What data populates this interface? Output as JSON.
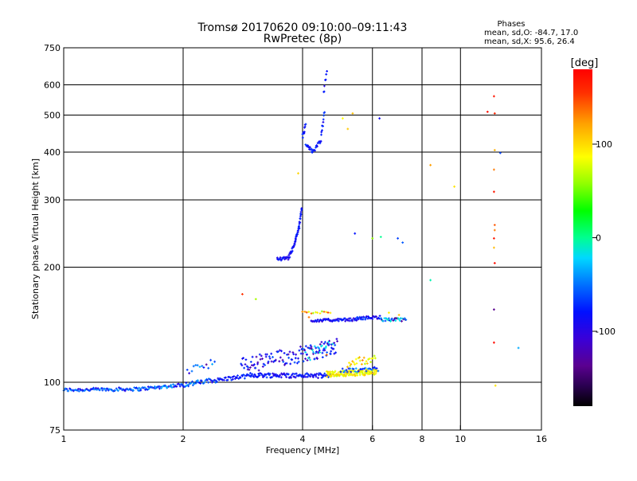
{
  "chart_data": {
    "type": "scatter",
    "title": "Tromsø 20170620 09:10:00–09:11:43",
    "subtitle": "RwPretec (8p)",
    "xlabel": "Frequency [MHz]",
    "ylabel": "Stationary phase Virtual Height [km]",
    "x_scale": "log",
    "y_scale": "log",
    "xlim": [
      1,
      16
    ],
    "ylim": [
      75,
      750
    ],
    "x_ticks": [
      1,
      2,
      4,
      6,
      8,
      10,
      16
    ],
    "y_ticks": [
      75,
      100,
      200,
      300,
      400,
      500,
      600,
      750
    ],
    "x_gridlines": [
      2,
      4,
      6,
      8,
      10
    ],
    "y_gridlines": [
      100,
      200,
      300,
      400,
      500,
      600
    ],
    "stats": {
      "header": "Phases",
      "line1": "mean, sd,O: -84.7, 17.0",
      "line2": "mean, sd,X:  95.6, 26.4"
    },
    "colorbar": {
      "label": "[deg]",
      "range": [
        -180,
        180
      ],
      "ticks": [
        {
          "value": 100,
          "label": "100"
        },
        {
          "value": 0,
          "label": "0"
        },
        {
          "value": -100,
          "label": "-100"
        }
      ]
    },
    "series": [
      {
        "name": "lower-trace",
        "segments": [
          {
            "x0": 1.0,
            "x1": 1.55,
            "y0": 95.5,
            "y1": 96.0,
            "n": 80,
            "phase": -100,
            "jitter": 1.0,
            "pspread": 25
          },
          {
            "x0": 1.55,
            "x1": 2.0,
            "y0": 96.0,
            "y1": 98.5,
            "n": 50,
            "phase": -95,
            "jitter": 1.0,
            "pspread": 30
          },
          {
            "x0": 2.0,
            "x1": 2.45,
            "y0": 98.5,
            "y1": 101.5,
            "n": 40,
            "phase": -95,
            "jitter": 1.5,
            "pspread": 25
          },
          {
            "x0": 2.45,
            "x1": 2.95,
            "y0": 101.5,
            "y1": 104.0,
            "n": 35,
            "phase": -110,
            "jitter": 1.2,
            "pspread": 10
          },
          {
            "x0": 2.95,
            "x1": 4.7,
            "y0": 104.5,
            "y1": 104.0,
            "n": 110,
            "phase": -112,
            "jitter": 1.5,
            "pspread": 10
          }
        ]
      },
      {
        "name": "scattered-mid",
        "segments": [
          {
            "x0": 2.05,
            "x1": 2.4,
            "y0": 108.0,
            "y1": 113.0,
            "n": 14,
            "phase": -100,
            "jitter": 3.0,
            "pspread": 40
          },
          {
            "x0": 2.8,
            "x1": 4.9,
            "y0": 110.0,
            "y1": 124.0,
            "n": 120,
            "phase": -115,
            "jitter": 6.0,
            "pspread": 20
          },
          {
            "x0": 4.0,
            "x1": 4.8,
            "y0": 118.0,
            "y1": 124.0,
            "n": 30,
            "phase": -80,
            "jitter": 5.0,
            "pspread": 60
          }
        ]
      },
      {
        "name": "yellow-cluster",
        "segments": [
          {
            "x0": 4.6,
            "x1": 6.15,
            "y0": 105.0,
            "y1": 106.5,
            "n": 130,
            "phase": 95,
            "jitter": 1.8,
            "pspread": 25
          },
          {
            "x0": 5.2,
            "x1": 6.1,
            "y0": 112.0,
            "y1": 116.0,
            "n": 25,
            "phase": 100,
            "jitter": 3.0,
            "pspread": 40
          }
        ]
      },
      {
        "name": "blue-right",
        "segments": [
          {
            "x0": 5.0,
            "x1": 6.2,
            "y0": 107.0,
            "y1": 108.5,
            "n": 30,
            "phase": -95,
            "jitter": 1.5,
            "pspread": 25
          }
        ]
      },
      {
        "name": "upper-band",
        "segments": [
          {
            "x0": 4.2,
            "x1": 5.5,
            "y0": 145.0,
            "y1": 146.0,
            "n": 60,
            "phase": -115,
            "jitter": 1.2,
            "pspread": 12
          },
          {
            "x0": 5.5,
            "x1": 6.3,
            "y0": 147.0,
            "y1": 148.0,
            "n": 35,
            "phase": -112,
            "jitter": 1.3,
            "pspread": 15
          },
          {
            "x0": 6.3,
            "x1": 7.3,
            "y0": 146.0,
            "y1": 145.5,
            "n": 30,
            "phase": -90,
            "jitter": 1.5,
            "pspread": 60
          },
          {
            "x0": 4.0,
            "x1": 4.7,
            "y0": 152.0,
            "y1": 153.0,
            "n": 14,
            "phase": 100,
            "jitter": 1.5,
            "pspread": 60
          }
        ]
      },
      {
        "name": "F-trace",
        "segments": [
          {
            "x0": 3.45,
            "x1": 3.7,
            "y0": 210.0,
            "y1": 211.0,
            "n": 22,
            "phase": -115,
            "jitter": 2.0,
            "pspread": 10
          },
          {
            "x0": 3.7,
            "x1": 3.82,
            "y0": 213.0,
            "y1": 230.0,
            "n": 18,
            "phase": -112,
            "jitter": 2.5,
            "pspread": 10
          },
          {
            "x0": 3.82,
            "x1": 3.92,
            "y0": 230.0,
            "y1": 255.0,
            "n": 18,
            "phase": -110,
            "jitter": 3.0,
            "pspread": 10
          },
          {
            "x0": 3.92,
            "x1": 3.98,
            "y0": 255.0,
            "y1": 285.0,
            "n": 14,
            "phase": -108,
            "jitter": 3.0,
            "pspread": 10
          },
          {
            "x0": 4.0,
            "x1": 4.07,
            "y0": 440.0,
            "y1": 470.0,
            "n": 10,
            "phase": -112,
            "jitter": 6.0,
            "pspread": 10
          },
          {
            "x0": 4.08,
            "x1": 4.25,
            "y0": 420.0,
            "y1": 400.0,
            "n": 18,
            "phase": -110,
            "jitter": 4.0,
            "pspread": 10
          },
          {
            "x0": 4.25,
            "x1": 4.45,
            "y0": 400.0,
            "y1": 430.0,
            "n": 14,
            "phase": -108,
            "jitter": 4.0,
            "pspread": 10
          },
          {
            "x0": 4.45,
            "x1": 4.55,
            "y0": 440.0,
            "y1": 510.0,
            "n": 10,
            "phase": -110,
            "jitter": 6.0,
            "pspread": 10
          },
          {
            "x0": 4.52,
            "x1": 4.6,
            "y0": 570.0,
            "y1": 650.0,
            "n": 7,
            "phase": -112,
            "jitter": 8.0,
            "pspread": 10
          }
        ]
      }
    ],
    "isolated_points": [
      {
        "x": 2.82,
        "y": 170,
        "phase": 160
      },
      {
        "x": 3.05,
        "y": 165,
        "phase": 60
      },
      {
        "x": 3.9,
        "y": 352,
        "phase": 110
      },
      {
        "x": 5.05,
        "y": 490,
        "phase": 95
      },
      {
        "x": 5.2,
        "y": 460,
        "phase": 115
      },
      {
        "x": 5.35,
        "y": 505,
        "phase": 120
      },
      {
        "x": 5.42,
        "y": 245,
        "phase": -110
      },
      {
        "x": 6.0,
        "y": 238,
        "phase": 50
      },
      {
        "x": 6.3,
        "y": 240,
        "phase": -20
      },
      {
        "x": 6.25,
        "y": 490,
        "phase": -115
      },
      {
        "x": 6.95,
        "y": 238,
        "phase": -100
      },
      {
        "x": 7.15,
        "y": 232,
        "phase": -95
      },
      {
        "x": 8.4,
        "y": 370,
        "phase": 130
      },
      {
        "x": 8.4,
        "y": 185,
        "phase": -30
      },
      {
        "x": 9.65,
        "y": 325,
        "phase": 105
      },
      {
        "x": 11.7,
        "y": 510,
        "phase": 175
      },
      {
        "x": 12.15,
        "y": 560,
        "phase": 170
      },
      {
        "x": 12.2,
        "y": 505,
        "phase": 165
      },
      {
        "x": 12.2,
        "y": 405,
        "phase": 125
      },
      {
        "x": 12.6,
        "y": 398,
        "phase": -100
      },
      {
        "x": 12.15,
        "y": 360,
        "phase": 140
      },
      {
        "x": 12.15,
        "y": 315,
        "phase": 170
      },
      {
        "x": 12.2,
        "y": 258,
        "phase": 150
      },
      {
        "x": 12.2,
        "y": 250,
        "phase": 140
      },
      {
        "x": 12.15,
        "y": 238,
        "phase": 170
      },
      {
        "x": 12.15,
        "y": 225,
        "phase": 120
      },
      {
        "x": 12.2,
        "y": 205,
        "phase": 175
      },
      {
        "x": 12.15,
        "y": 155,
        "phase": -140
      },
      {
        "x": 12.15,
        "y": 127,
        "phase": 175
      },
      {
        "x": 12.25,
        "y": 98,
        "phase": 105
      },
      {
        "x": 14.0,
        "y": 123,
        "phase": -70
      },
      {
        "x": 4.15,
        "y": 148,
        "phase": 140
      },
      {
        "x": 4.6,
        "y": 118,
        "phase": 150
      },
      {
        "x": 6.6,
        "y": 152,
        "phase": 100
      },
      {
        "x": 7.0,
        "y": 150,
        "phase": 120
      }
    ]
  }
}
